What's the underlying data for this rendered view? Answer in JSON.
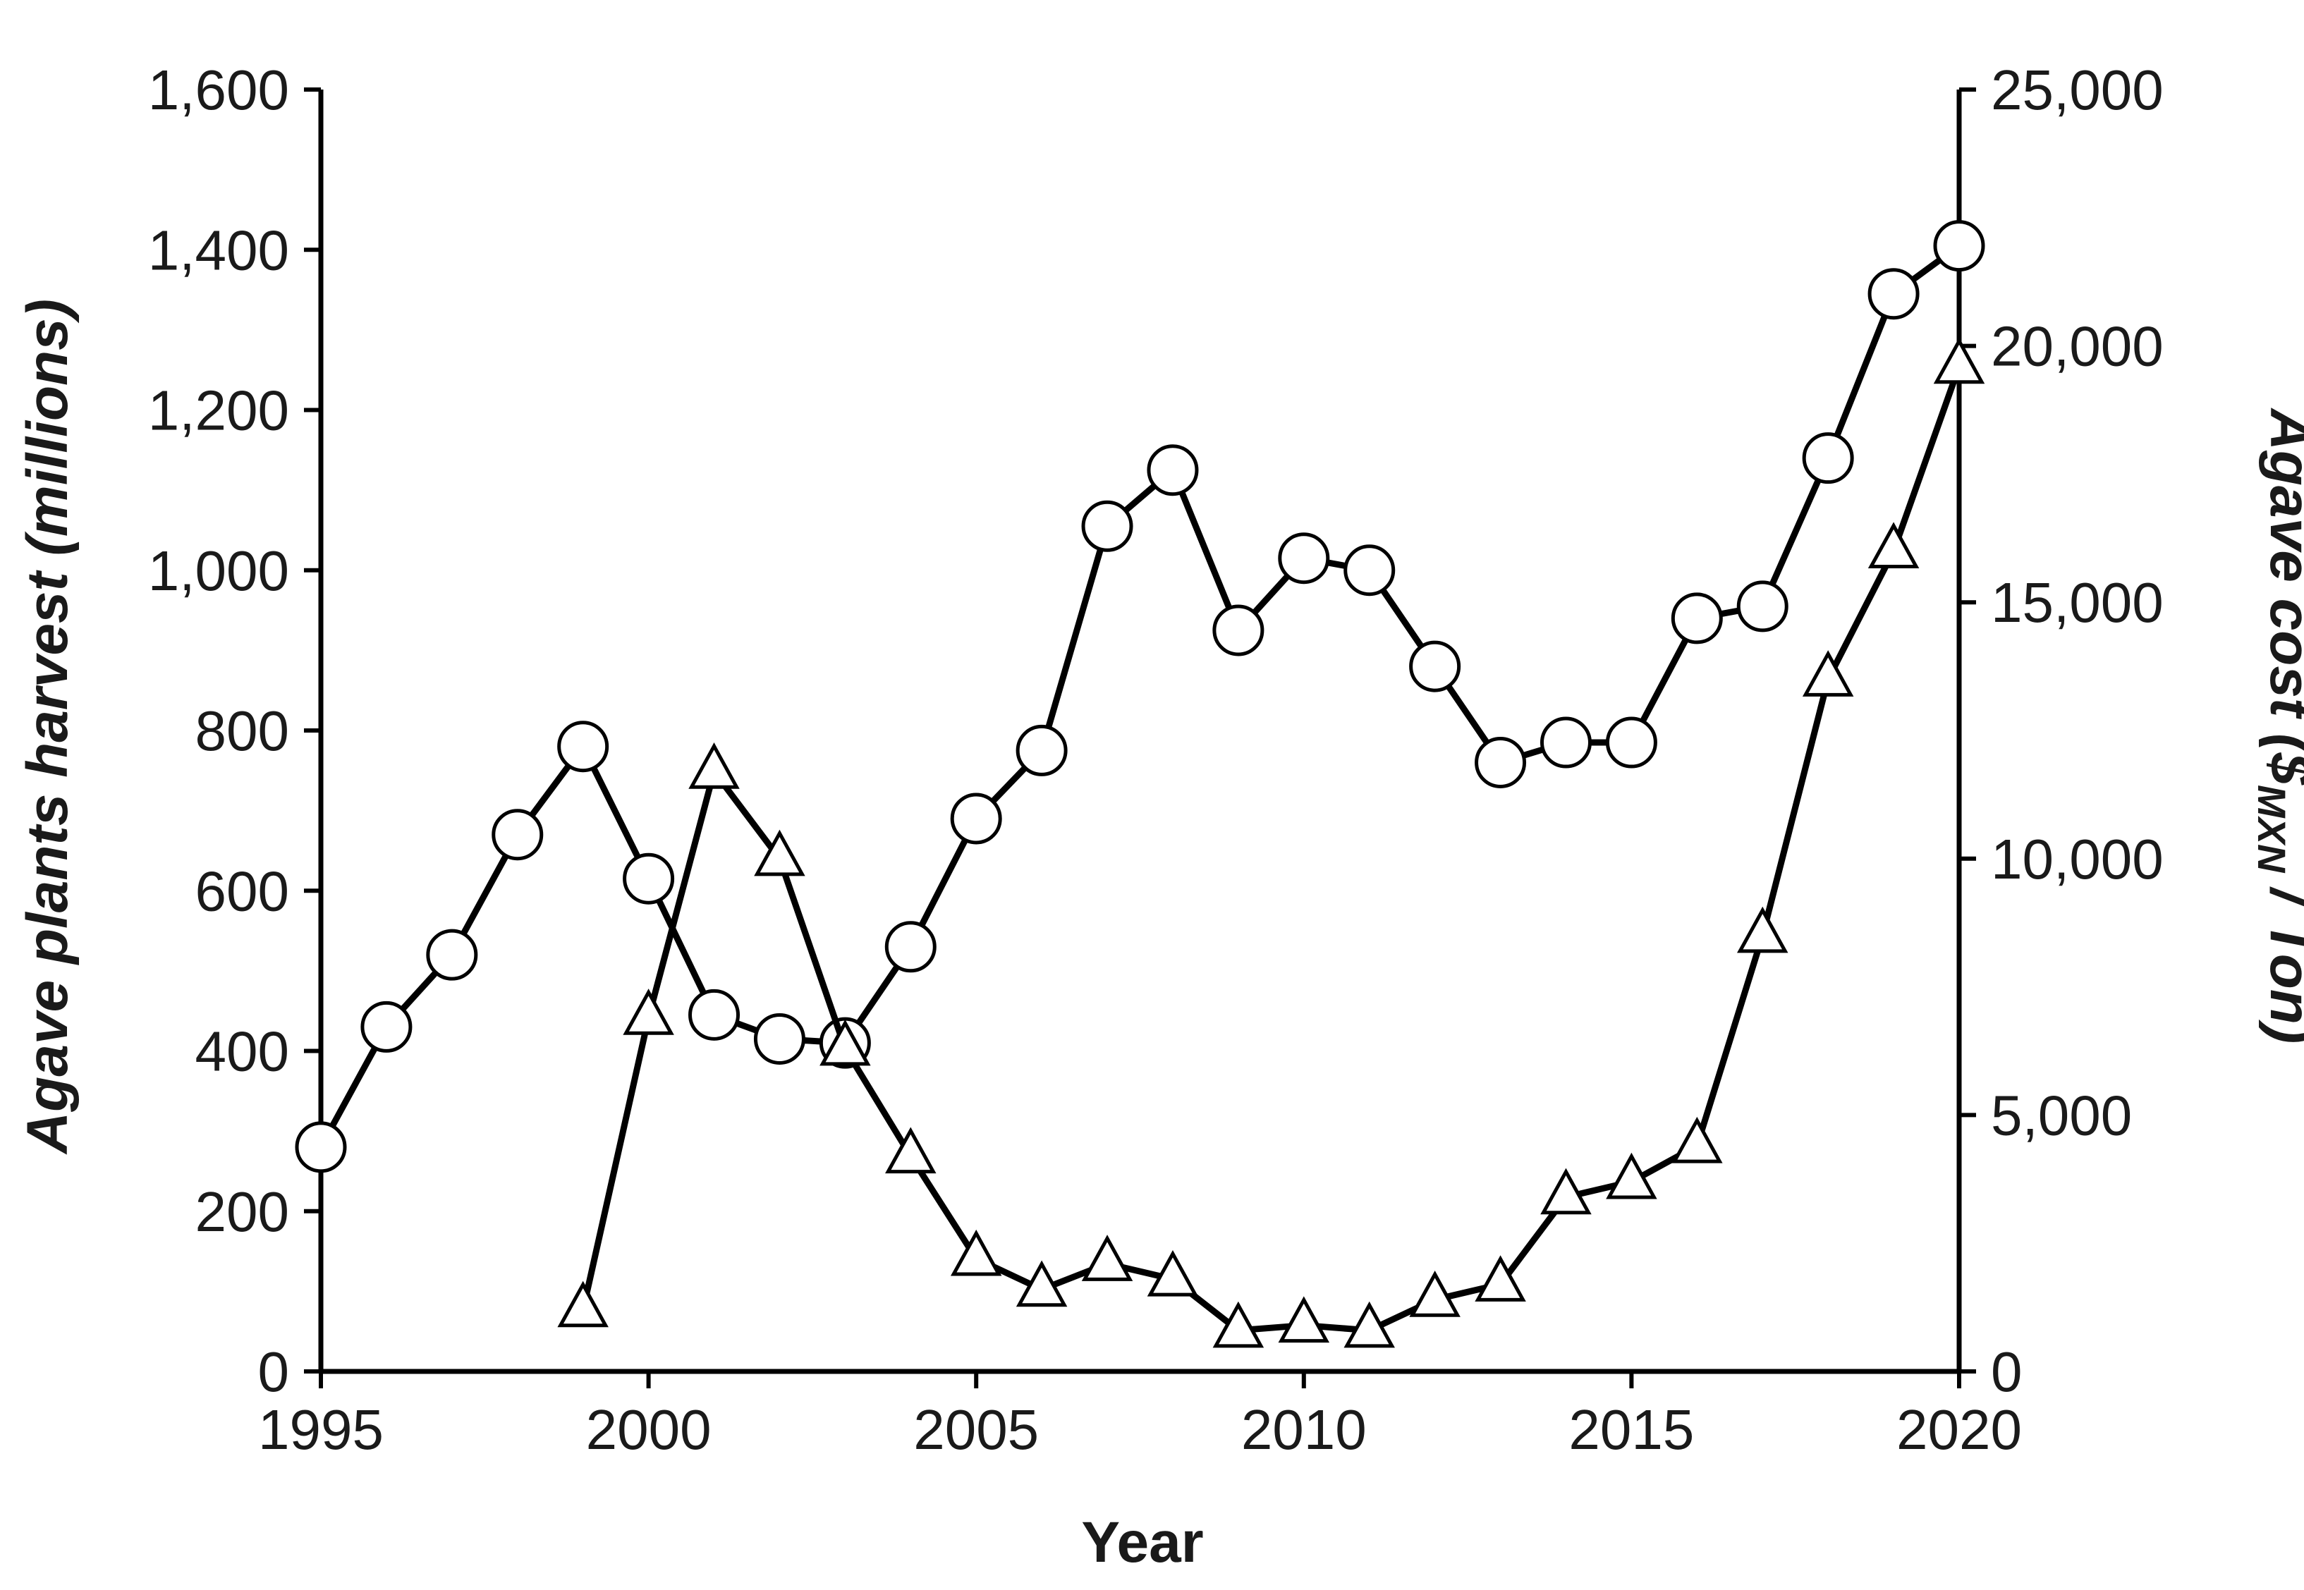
{
  "chart_data": {
    "type": "line",
    "xlabel": "Year",
    "ylabel_left": {
      "segments": [
        {
          "text": "Agave plants harvest ",
          "style": "bold-italic"
        },
        {
          "text": "(millions)",
          "style": "bold-italic"
        }
      ]
    },
    "ylabel_right": {
      "segments": [
        {
          "text": "Agave cost (",
          "style": "bold-italic"
        },
        {
          "text": "$",
          "style": "bold-italic"
        },
        {
          "text": "MXN",
          "style": "subscript"
        },
        {
          "text": " / Ton)",
          "style": "bold-italic"
        }
      ]
    },
    "x_ticks": [
      "1995",
      "2000",
      "2005",
      "2010",
      "2015",
      "2020"
    ],
    "x_tick_values": [
      1995,
      2000,
      2005,
      2010,
      2015,
      2020
    ],
    "xlim": [
      1995,
      2020
    ],
    "y_left_ticks": [
      "0",
      "200",
      "400",
      "600",
      "800",
      "1,000",
      "1,200",
      "1,400",
      "1,600"
    ],
    "y_left_tick_values": [
      0,
      200,
      400,
      600,
      800,
      1000,
      1200,
      1400,
      1600
    ],
    "ylim_left": [
      0,
      1600
    ],
    "y_right_ticks": [
      "0",
      "5,000",
      "10,000",
      "15,000",
      "20,000",
      "25,000"
    ],
    "y_right_tick_values": [
      0,
      5000,
      10000,
      15000,
      20000,
      25000
    ],
    "ylim_right": [
      0,
      25000
    ],
    "grid": false,
    "legend": "none",
    "series": [
      {
        "axis": "left",
        "marker": "circle",
        "x": [
          1995,
          1996,
          1997,
          1998,
          1999,
          2000,
          2001,
          2002,
          2003,
          2004,
          2005,
          2006,
          2007,
          2008,
          2009,
          2010,
          2011,
          2012,
          2013,
          2014,
          2015,
          2016,
          2017,
          2018,
          2019,
          2020
        ],
        "values": [
          280,
          430,
          520,
          670,
          780,
          615,
          445,
          415,
          410,
          530,
          690,
          775,
          1055,
          1125,
          925,
          1015,
          1000,
          880,
          760,
          785,
          785,
          940,
          955,
          1140,
          1345,
          1405
        ]
      },
      {
        "axis": "right",
        "marker": "triangle",
        "x": [
          1999,
          2000,
          2001,
          2002,
          2003,
          2004,
          2005,
          2006,
          2007,
          2008,
          2009,
          2010,
          2011,
          2012,
          2013,
          2014,
          2015,
          2016,
          2017,
          2018,
          2019,
          2020
        ],
        "values": [
          1200,
          6900,
          11700,
          10000,
          6300,
          4200,
          2200,
          1600,
          2100,
          1800,
          800,
          900,
          800,
          1400,
          1700,
          3400,
          3700,
          4400,
          8500,
          13500,
          16000,
          19600
        ]
      }
    ]
  }
}
